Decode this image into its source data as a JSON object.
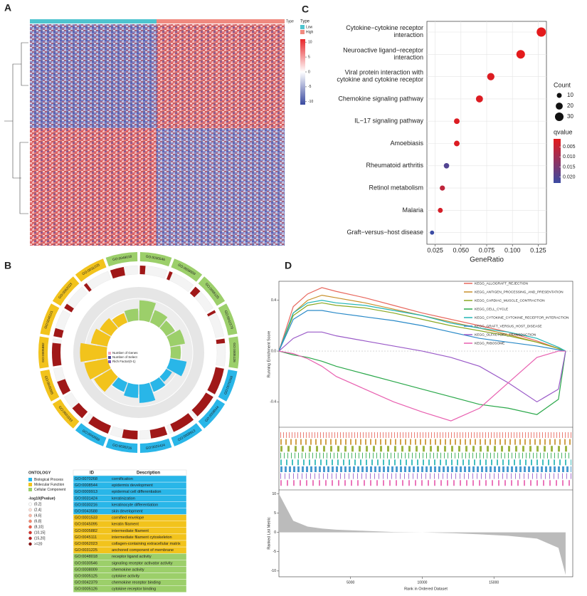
{
  "panels": {
    "a": "A",
    "b": "B",
    "c": "C",
    "d": "D"
  },
  "heatmap": {
    "annotation_label": "Type",
    "legend_title": "Type",
    "groups": [
      "Low",
      "High"
    ],
    "group_colors": [
      "#4fc4cf",
      "#f08a80"
    ],
    "colors": [
      "#e8262a",
      "#ffffff",
      "#3a4aa0"
    ],
    "clim": [
      -11,
      11
    ],
    "colorbar_ticks": [
      10,
      5,
      0,
      -5,
      -10
    ]
  },
  "dotplot": {
    "type": "scatter",
    "categories": [
      "Cytokine−cytokine receptor\ninteraction",
      "Neuroactive ligand−receptor\ninteraction",
      "Viral protein interaction with\ncytokine and cytokine receptor",
      "Chemokine signaling pathway",
      "IL−17 signaling pathway",
      "Amoebiasis",
      "Rheumatoid arthritis",
      "Retinol metabolism",
      "Malaria",
      "Graft−versus−host disease"
    ],
    "x": [
      0.128,
      0.108,
      0.079,
      0.068,
      0.046,
      0.046,
      0.036,
      0.032,
      0.03,
      0.022
    ],
    "count": [
      35,
      30,
      22,
      20,
      13,
      13,
      12,
      11,
      10,
      7
    ],
    "qvalue": [
      0.001,
      0.001,
      0.002,
      0.002,
      0.002,
      0.002,
      0.02,
      0.006,
      0.003,
      0.023
    ],
    "xlabel": "GeneRatio",
    "xlim": [
      0.017,
      0.133
    ],
    "xticks": [
      0.025,
      {
        "value": 0.05,
        "label": "0.050"
      },
      0.075,
      {
        "value": 0.1,
        "label": "0.100"
      },
      0.125
    ],
    "grid": true,
    "size_title": "Count",
    "size_ticks": [
      10,
      20,
      30
    ],
    "color_title": "qvalue",
    "color_range": [
      "#e41a1c",
      "#3b4ba3"
    ],
    "clim": [
      0.001,
      0.023
    ],
    "color_ticks": [
      0.005,
      {
        "value": 0.01,
        "label": "0.010"
      },
      0.015,
      {
        "value": 0.02,
        "label": "0.020"
      }
    ]
  },
  "circos_legend": {
    "labels": [
      "Number of Genes",
      "Number of Select",
      "Rich Factor(0-1)"
    ],
    "colors": [
      "#f3a7c0",
      "#4a4aa0",
      "#7a5ab8"
    ]
  },
  "gene_bar_color": "#a01818",
  "ontology": {
    "title": "ONTOLOGY",
    "names": [
      "Biological Process",
      "Molecular Function",
      "Cellular Component"
    ],
    "colors": [
      "#29b6e8",
      "#f2c31c",
      "#9ccf6a"
    ]
  },
  "pvalue_legend": {
    "title": "-log10(Pvalue)",
    "labels": [
      "(0,2]",
      "(2,4]",
      "(4,6]",
      "(6,8]",
      "(8,10]",
      "(10,15]",
      "(15,20]",
      ">=20"
    ],
    "colors": [
      "#ffffff",
      "#fde0d8",
      "#fbb8a6",
      "#f7886e",
      "#ef5a45",
      "#d9302a",
      "#b81a1a",
      "#8a0d0d"
    ]
  },
  "go_table": {
    "header": [
      "ID",
      "Description"
    ],
    "rows": [
      {
        "id": "GO:0070268",
        "description": "cornification",
        "ontology": 0,
        "genes": 488,
        "rich_factor": 0.5
      },
      {
        "id": "GO:0008544",
        "description": "epidermis development",
        "ontology": 0,
        "genes": 450,
        "rich_factor": 0.2
      },
      {
        "id": "GO:0009913",
        "description": "epidermal cell differentiation",
        "ontology": 0,
        "genes": 420,
        "rich_factor": 0.3
      },
      {
        "id": "GO:0031424",
        "description": "keratinization",
        "ontology": 0,
        "genes": 300,
        "rich_factor": 0.55
      },
      {
        "id": "GO:0030216",
        "description": "keratinocyte differentiation",
        "ontology": 0,
        "genes": 280,
        "rich_factor": 0.4
      },
      {
        "id": "GO:0043588",
        "description": "skin development",
        "ontology": 0,
        "genes": 400,
        "rich_factor": 0.3
      },
      {
        "id": "GO:0001533",
        "description": "cornified envelope",
        "ontology": 1,
        "genes": 250,
        "rich_factor": 0.6
      },
      {
        "id": "GO:0045095",
        "description": "keratin filament",
        "ontology": 1,
        "genes": 256,
        "rich_factor": 0.7
      },
      {
        "id": "GO:0005882",
        "description": "intermediate filament",
        "ontology": 1,
        "genes": 423,
        "rich_factor": 0.8
      },
      {
        "id": "GO:0045111",
        "description": "intermediate filament cytoskeleton",
        "ontology": 1,
        "genes": 150,
        "rich_factor": 0.5
      },
      {
        "id": "GO:0062023",
        "description": "collagen-containing extracellular matrix",
        "ontology": 1,
        "genes": 90,
        "rich_factor": 0.4
      },
      {
        "id": "GO:0031225",
        "description": "anchored component of membrane",
        "ontology": 1,
        "genes": 60,
        "rich_factor": 0.3
      },
      {
        "id": "GO:0048018",
        "description": "receptor ligand activity",
        "ontology": 2,
        "genes": 250,
        "rich_factor": 0.35
      },
      {
        "id": "GO:0030546",
        "description": "signaling receptor activator activity",
        "ontology": 2,
        "genes": 100,
        "rich_factor": 0.6
      },
      {
        "id": "GO:0008009",
        "description": "chemokine activity",
        "ontology": 2,
        "genes": 60,
        "rich_factor": 0.4
      },
      {
        "id": "GO:0005125",
        "description": "cytokine activity",
        "ontology": 2,
        "genes": 120,
        "rich_factor": 0.3
      },
      {
        "id": "GO:0042379",
        "description": "chemokine receptor binding",
        "ontology": 2,
        "genes": 50,
        "rich_factor": 0.45
      },
      {
        "id": "GO:0005126",
        "description": "cytokine receptor binding",
        "ontology": 2,
        "genes": 80,
        "rich_factor": 0.3
      }
    ]
  },
  "gsea": {
    "type": "line",
    "ylabel": "Running Enrichment Score",
    "xlabel": "Rank in Ordered Dataset",
    "x": [
      0,
      1000,
      2000,
      3000,
      4000,
      6000,
      8000,
      10000,
      12000,
      14000,
      16000,
      18000,
      19500,
      20000
    ],
    "xlim": [
      0,
      20500
    ],
    "xticks": [
      5000,
      10000,
      15000
    ],
    "ylim": [
      -0.6,
      0.55
    ],
    "yticks": [
      -0.4,
      {
        "value": 0,
        "label": "0.0"
      },
      0.4
    ],
    "series": [
      {
        "name": "KEGG_ALLOGRAFT_REJECTION",
        "color": "#e8685e",
        "values": [
          0,
          0.35,
          0.45,
          0.5,
          0.47,
          0.42,
          0.36,
          0.3,
          0.25,
          0.2,
          0.15,
          0.08,
          0.02,
          0
        ]
      },
      {
        "name": "KEGG_ANTIGEN_PROCESSING_AND_PRESENTATION",
        "color": "#c8902a",
        "values": [
          0,
          0.3,
          0.4,
          0.44,
          0.42,
          0.38,
          0.33,
          0.28,
          0.23,
          0.18,
          0.13,
          0.07,
          0.02,
          0
        ]
      },
      {
        "name": "KEGG_CARDIAC_MUSCLE_CONTRACTION",
        "color": "#8aa822",
        "values": [
          0,
          0.28,
          0.36,
          0.38,
          0.36,
          0.34,
          0.3,
          0.25,
          0.2,
          0.16,
          0.12,
          0.07,
          0.02,
          0
        ]
      },
      {
        "name": "KEGG_CELL_CYCLE",
        "color": "#2aa84a",
        "values": [
          0,
          -0.03,
          -0.05,
          -0.08,
          -0.12,
          -0.18,
          -0.24,
          -0.3,
          -0.36,
          -0.42,
          -0.45,
          -0.5,
          -0.38,
          0
        ]
      },
      {
        "name": "KEGG_CYTOKINE_CYTOKINE_RECEPTOR_INTERACTION",
        "color": "#22b5b5",
        "values": [
          0,
          0.3,
          0.38,
          0.4,
          0.38,
          0.36,
          0.32,
          0.28,
          0.22,
          0.18,
          0.15,
          0.1,
          0.03,
          0
        ]
      },
      {
        "name": "KEGG_GRAFT_VERSUS_HOST_DISEASE",
        "color": "#2a8ac8",
        "values": [
          0,
          0.25,
          0.32,
          0.32,
          0.3,
          0.27,
          0.24,
          0.2,
          0.15,
          0.1,
          0.07,
          0.04,
          0.01,
          0
        ]
      },
      {
        "name": "KEGG_OLFACTORY_TRANSDUCTION",
        "color": "#9a5ac8",
        "values": [
          0,
          0.1,
          0.15,
          0.15,
          0.12,
          0.08,
          0.04,
          0,
          -0.05,
          -0.12,
          -0.25,
          -0.4,
          -0.3,
          0
        ]
      },
      {
        "name": "KEGG_RIBOSOME",
        "color": "#e860b0",
        "values": [
          0,
          -0.02,
          -0.06,
          -0.12,
          -0.2,
          -0.3,
          -0.4,
          -0.48,
          -0.55,
          -0.45,
          -0.25,
          -0.05,
          0,
          0
        ]
      }
    ],
    "metric": {
      "ylabel": "Ranked List Metric",
      "color": "#bbbbbb",
      "values": [
        10,
        3,
        1.5,
        1,
        0.7,
        0.4,
        0.1,
        0,
        -0.2,
        -0.5,
        -0.9,
        -1.6,
        -4,
        -11
      ],
      "ylim": [
        -11.5,
        11
      ],
      "yticks": [
        -10,
        -5,
        0,
        5,
        10
      ]
    }
  }
}
